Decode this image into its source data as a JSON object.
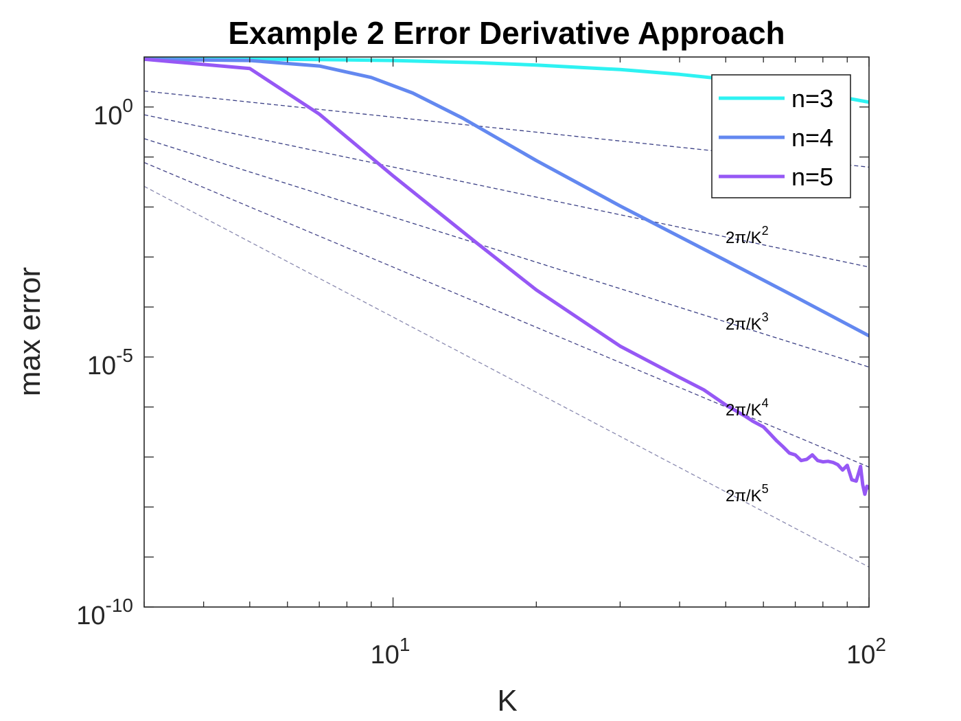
{
  "chart_data": {
    "type": "line",
    "title": "Example 2 Error Derivative Approach",
    "xlabel": "K",
    "ylabel": "max error",
    "xscale": "log",
    "yscale": "log",
    "xlim": [
      3,
      100
    ],
    "ylim": [
      1e-10,
      10
    ],
    "grid": false,
    "legend_position": "top-right",
    "x_ticks": [
      {
        "value": 10,
        "base": "10",
        "exp": "1"
      },
      {
        "value": 100,
        "base": "10",
        "exp": "2"
      }
    ],
    "y_ticks": [
      {
        "value": 1,
        "base": "10",
        "exp": "0"
      },
      {
        "value": 1e-05,
        "base": "10",
        "exp": "-5"
      },
      {
        "value": 1e-10,
        "base": "10",
        "exp": "-10"
      }
    ],
    "series": [
      {
        "name": "n=3",
        "color": "#2ef2f2",
        "x": [
          3,
          5,
          7,
          10,
          15,
          20,
          30,
          40,
          50,
          60,
          70,
          80,
          90,
          100
        ],
        "y": [
          9.3,
          9.1,
          8.9,
          8.5,
          7.7,
          6.9,
          5.6,
          4.5,
          3.6,
          2.9,
          2.3,
          1.85,
          1.5,
          1.25
        ]
      },
      {
        "name": "n=4",
        "color": "#6388f0",
        "x": [
          3,
          5,
          7,
          9,
          11,
          14,
          20,
          30,
          50,
          70,
          100
        ],
        "y": [
          9.0,
          8.5,
          6.6,
          3.9,
          1.9,
          0.6,
          0.085,
          0.0105,
          0.00085,
          0.00016,
          2.65e-05
        ]
      },
      {
        "name": "n=5",
        "color": "#9658f5",
        "x": [
          3,
          5,
          7,
          10,
          15,
          20,
          30,
          40,
          45,
          50,
          55,
          57,
          60,
          62,
          64,
          66,
          68,
          70,
          72,
          74,
          76,
          78,
          80,
          82,
          84,
          86,
          88,
          90,
          92,
          94,
          96,
          97,
          98,
          99,
          100
        ],
        "y": [
          9.0,
          5.9,
          0.72,
          0.042,
          0.0019,
          0.00022,
          1.65e-05,
          3.9e-06,
          2.2e-06,
          1.1e-06,
          6.5e-07,
          5.2e-07,
          4e-07,
          2.9e-07,
          2.1e-07,
          1.6e-07,
          1.2e-07,
          1.1e-07,
          8.5e-08,
          9e-08,
          1.1e-07,
          8.5e-08,
          8e-08,
          8.2e-08,
          7.8e-08,
          7e-08,
          5.5e-08,
          6.8e-08,
          3.5e-08,
          3.3e-08,
          6.5e-08,
          2.8e-08,
          1.8e-08,
          2.6e-08,
          2.4e-08
        ]
      }
    ],
    "reference_lines": [
      {
        "label_base": "2π/K",
        "label_exp": "",
        "power": 1,
        "y_at_xmin": 2.09,
        "color": "#3a3f85"
      },
      {
        "label_base": "2π/K",
        "label_exp": "2",
        "power": 2,
        "y_at_xmin": 0.7,
        "color": "#3a3f85"
      },
      {
        "label_base": "2π/K",
        "label_exp": "3",
        "power": 3,
        "y_at_xmin": 0.233,
        "color": "#3a3f85"
      },
      {
        "label_base": "2π/K",
        "label_exp": "4",
        "power": 4,
        "y_at_xmin": 0.0776,
        "color": "#46468a"
      },
      {
        "label_base": "2π/K",
        "label_exp": "5",
        "power": 5,
        "y_at_xmin": 0.0259,
        "color": "#8a8ab0"
      }
    ]
  }
}
